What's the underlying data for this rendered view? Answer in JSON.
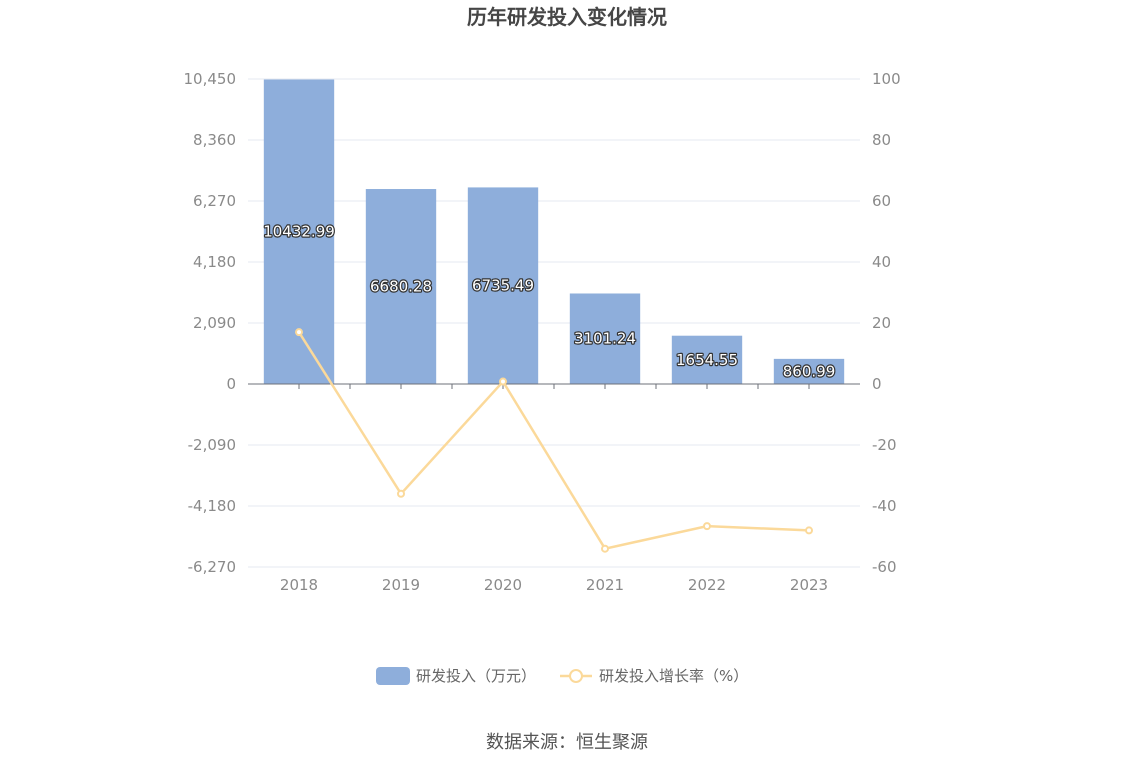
{
  "chart_data": {
    "type": "bar",
    "title": "历年研发投入变化情况",
    "categories": [
      "2018",
      "2019",
      "2020",
      "2021",
      "2022",
      "2023"
    ],
    "series": [
      {
        "name": "研发投入（万元）",
        "type": "bar",
        "axis": "left",
        "values": [
          10432.99,
          6680.28,
          6735.49,
          3101.24,
          1654.55,
          860.99
        ],
        "labels": [
          "10432.99",
          "6680.28",
          "6735.49",
          "3101.24",
          "1654.55",
          "860.99"
        ],
        "color": "#8eaedb"
      },
      {
        "name": "研发投入增长率（%）",
        "type": "line",
        "axis": "right",
        "values": [
          17.0,
          -36.0,
          0.8,
          -54.0,
          -46.6,
          -48.0
        ],
        "color": "#fbd99a"
      }
    ],
    "y_left": {
      "min": -6270,
      "max": 10450,
      "ticks": [
        10450,
        8360,
        6270,
        4180,
        2090,
        0,
        -2090,
        -4180,
        -6270
      ],
      "tick_labels": [
        "10,450",
        "8,360",
        "6,270",
        "4,180",
        "2,090",
        "0",
        "-2,090",
        "-4,180",
        "-6,270"
      ]
    },
    "y_right": {
      "min": -60,
      "max": 100,
      "ticks": [
        100,
        80,
        60,
        40,
        20,
        0,
        -20,
        -40,
        -60
      ],
      "tick_labels": [
        "100",
        "80",
        "60",
        "40",
        "20",
        "0",
        "-20",
        "-40",
        "-60"
      ]
    },
    "grid": true,
    "legend_position": "bottom-center"
  },
  "source_text": "数据来源：恒生聚源",
  "colors": {
    "grid": "#e6e9f2",
    "axis": "#6e7079",
    "tick_text": "#8a8a8a"
  }
}
